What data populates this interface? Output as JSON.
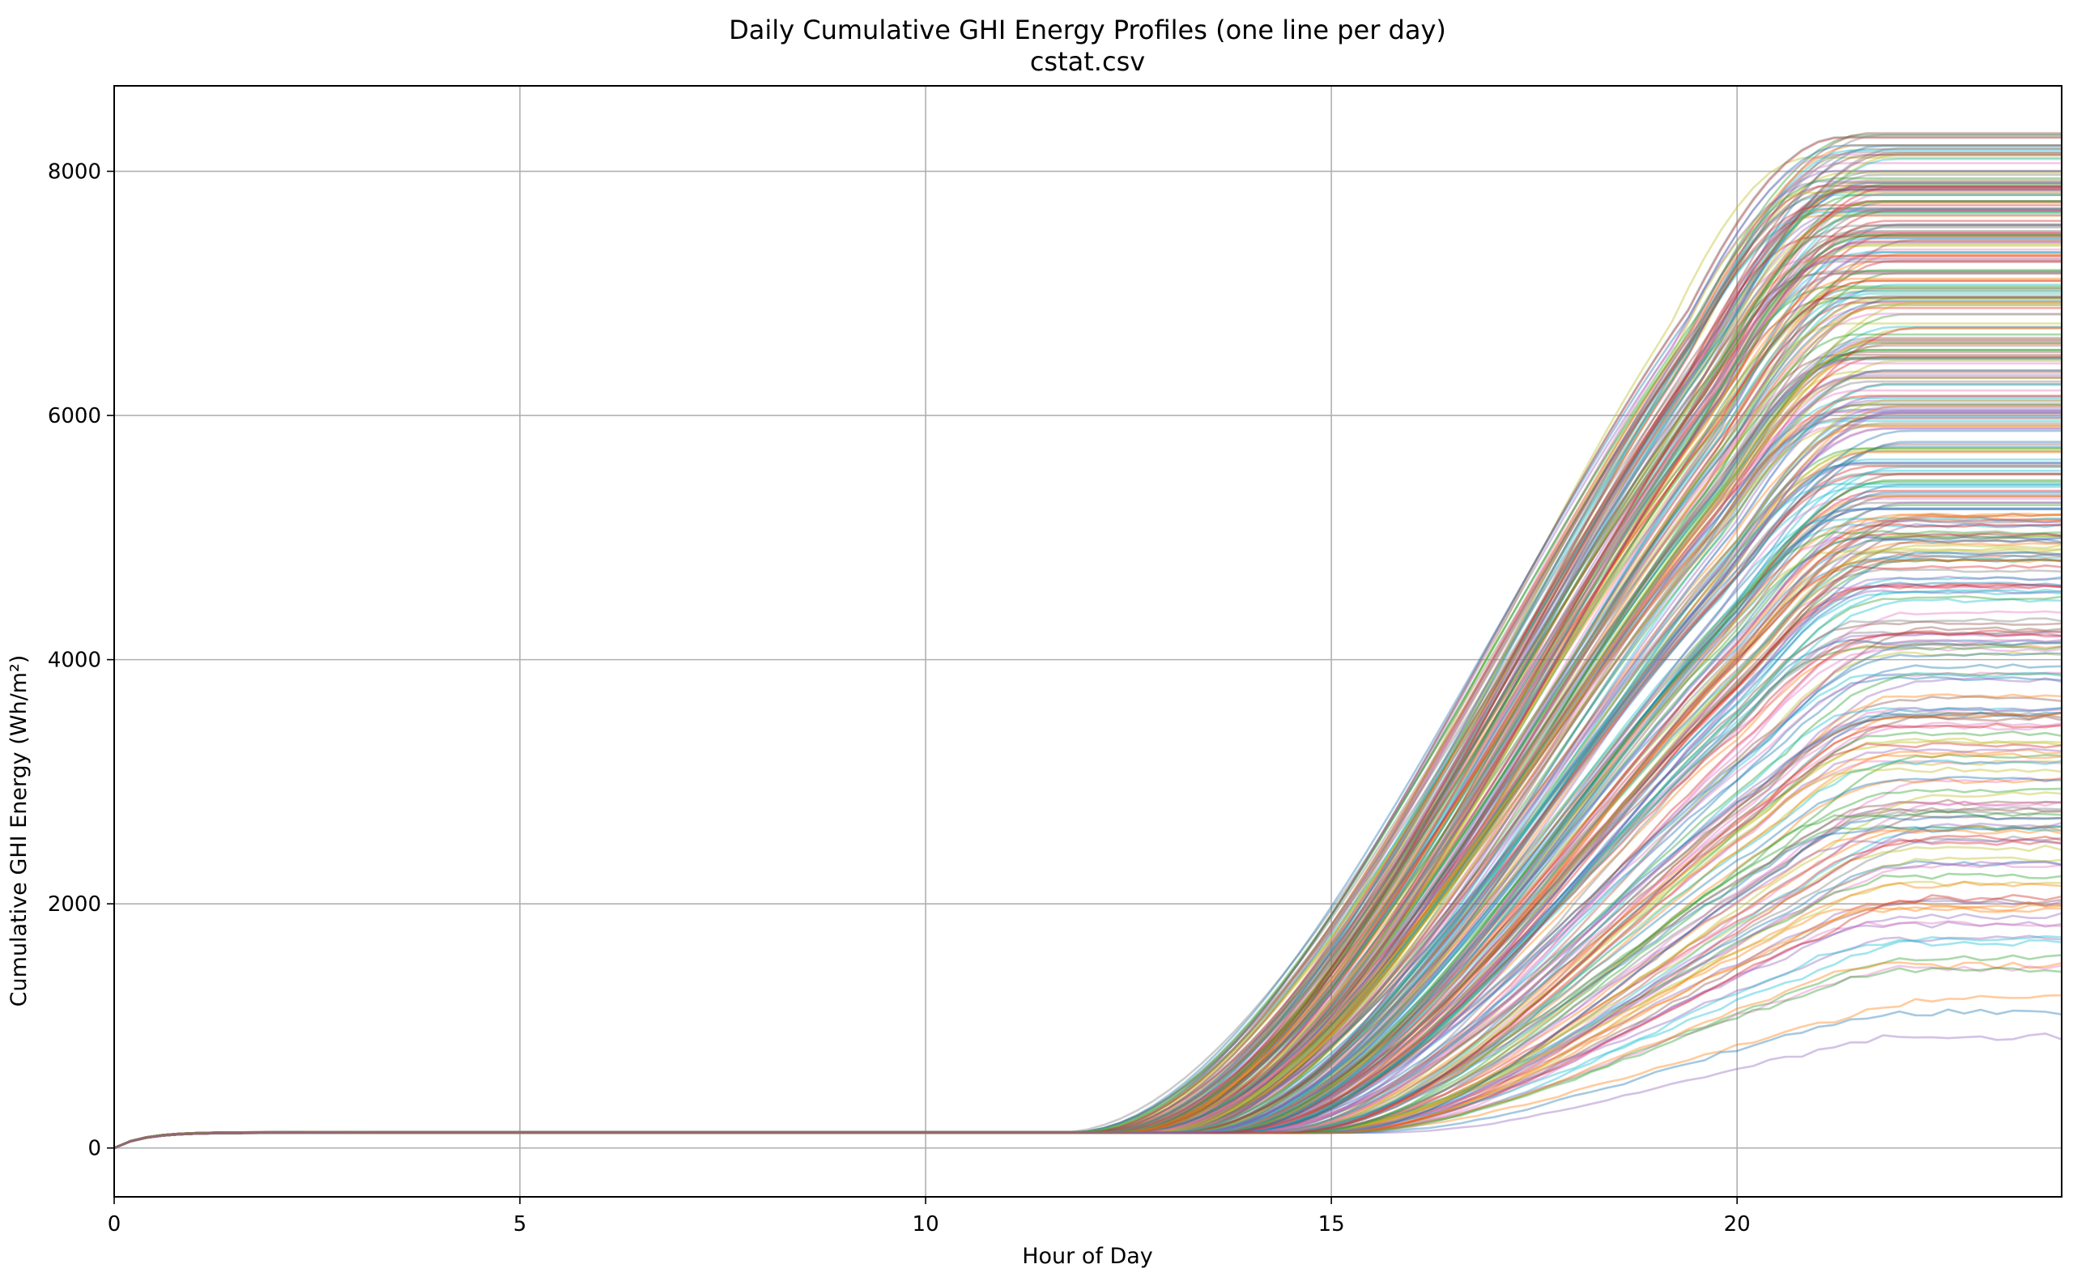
{
  "chart_data": {
    "type": "line",
    "title": "Daily Cumulative GHI Energy Profiles (one line per day)",
    "subtitle": "cstat.csv",
    "xlabel": "Hour of Day",
    "ylabel": "Cumulative GHI Energy (Wh/m²)",
    "xlim": [
      0,
      24
    ],
    "ylim": [
      -400,
      8700
    ],
    "xticks": [
      0,
      5,
      10,
      15,
      20
    ],
    "yticks": [
      0,
      2000,
      4000,
      6000,
      8000
    ],
    "grid": true,
    "legend": "none",
    "series_count": 365,
    "series_alpha": 0.4,
    "night_plateau": 130,
    "final_value_range": [
      580,
      8320
    ],
    "palette": [
      "#1f77b4",
      "#ff7f0e",
      "#2ca02c",
      "#d62728",
      "#9467bd",
      "#8c564b",
      "#e377c2",
      "#7f7f7f",
      "#bcbd22",
      "#17becf"
    ]
  }
}
